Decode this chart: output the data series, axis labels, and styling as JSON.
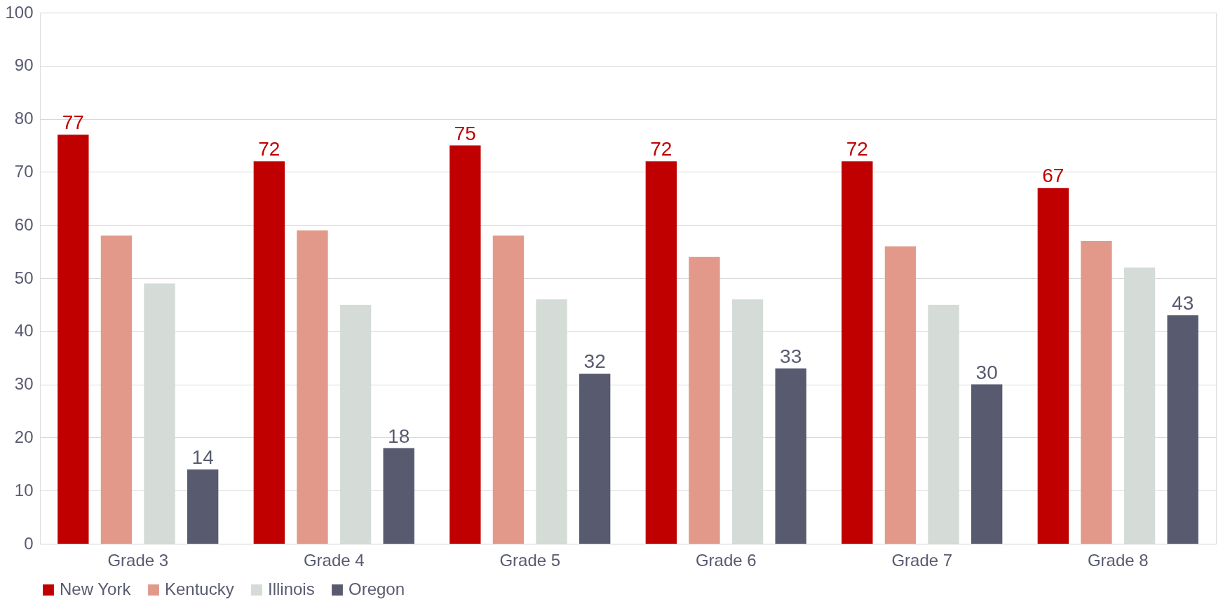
{
  "chart_data": {
    "type": "bar",
    "categories": [
      "Grade 3",
      "Grade 4",
      "Grade 5",
      "Grade 6",
      "Grade 7",
      "Grade 8"
    ],
    "series": [
      {
        "name": "New York",
        "color": "#c00000",
        "values": [
          77,
          72,
          75,
          72,
          72,
          67
        ],
        "value_labels": [
          "77",
          "72",
          "75",
          "72",
          "72",
          "67"
        ]
      },
      {
        "name": "Kentucky",
        "color": "#e3998a",
        "values": [
          58,
          59,
          58,
          54,
          56,
          57
        ]
      },
      {
        "name": "Illinois",
        "color": "#d5dbd7",
        "values": [
          49,
          45,
          46,
          46,
          45,
          52
        ]
      },
      {
        "name": "Oregon",
        "color": "#585a70",
        "values": [
          14,
          18,
          32,
          33,
          30,
          43
        ],
        "value_labels": [
          "14",
          "18",
          "32",
          "33",
          "30",
          "43"
        ]
      }
    ],
    "ylim": [
      0,
      100
    ],
    "yticks": [
      0,
      10,
      20,
      30,
      40,
      50,
      60,
      70,
      80,
      90,
      100
    ],
    "grid": "y",
    "legend": "bottom"
  }
}
